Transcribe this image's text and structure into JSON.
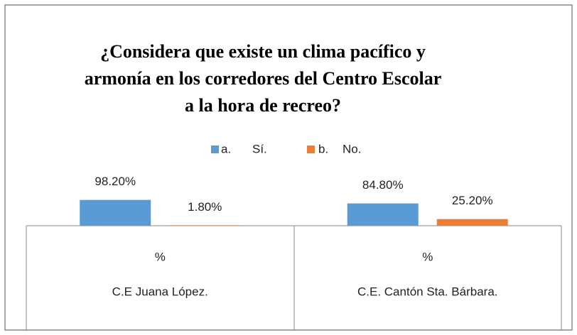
{
  "chart_data": {
    "type": "bar",
    "title": [
      "¿Considera que existe un clima pacífico y",
      "armonía en los corredores del Centro Escolar",
      "a la hora de recreo?"
    ],
    "categories": [
      "%",
      "%"
    ],
    "groups": [
      "C.E Juana López.",
      "C.E. Cantón Sta. Bárbara."
    ],
    "series": [
      {
        "name": [
          "a.",
          "Sí."
        ],
        "color": "#5b9bd5",
        "values": [
          98.2,
          84.8
        ],
        "value_labels": [
          "98.20%",
          "84.80%"
        ]
      },
      {
        "name": [
          "b.",
          "No."
        ],
        "color": "#ed7d31",
        "values": [
          1.8,
          25.2
        ],
        "value_labels": [
          "1.80%",
          "25.20%"
        ]
      }
    ],
    "ylim": [
      0,
      100
    ]
  }
}
